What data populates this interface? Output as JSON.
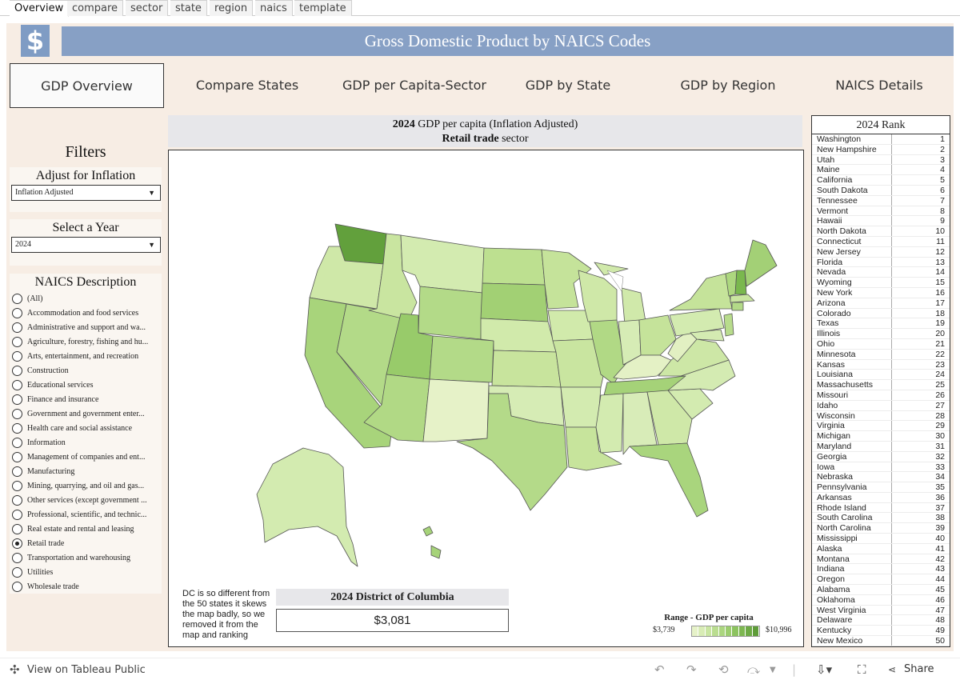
{
  "tabs": [
    "Overview",
    "compare",
    "sector",
    "state",
    "region",
    "naics",
    "template"
  ],
  "banner": {
    "logo": "$",
    "title": "Gross Domestic Product by NAICS Codes"
  },
  "nav": [
    "GDP Overview",
    "Compare States",
    "GDP per Capita-Sector",
    "GDP by State",
    "GDP by Region",
    "NAICS Details"
  ],
  "filters": {
    "title": "Filters",
    "inflation_label": "Adjust for Inflation",
    "inflation_value": "Inflation Adjusted",
    "year_label": "Select a Year",
    "year_value": "2024",
    "naics_label": "NAICS Description",
    "naics_options": [
      "(All)",
      "Accommodation and food services",
      "Administrative and support and wa...",
      "Agriculture, forestry, fishing and hu...",
      "Arts, entertainment, and recreation",
      "Construction",
      "Educational services",
      "Finance and insurance",
      "Government and government enter...",
      "Health care and social assistance",
      "Information",
      "Management of companies and ent...",
      "Manufacturing",
      "Mining, quarrying, and oil and gas...",
      "Other services (except government ...",
      "Professional, scientific, and technic...",
      "Real estate and rental and leasing",
      "Retail trade",
      "Transportation and warehousing",
      "Utilities",
      "Wholesale trade"
    ],
    "naics_selected": "Retail trade"
  },
  "map": {
    "title_year": "2024",
    "title_rest": "GDP per capita (Inflation Adjusted)",
    "title_sector": "Retail trade",
    "title_sector_suffix": "sector",
    "dc_note": "DC is so different from the 50 states it skews the map badly, so we removed it from the map and ranking",
    "dc_title": "2024 District of Columbia",
    "dc_value": "$3,081",
    "legend_title": "Range - GDP per capita",
    "legend_min": "$3,739",
    "legend_max": "$10,996",
    "legend_colors": [
      "#e6f2c8",
      "#d8ecb5",
      "#c9e5a2",
      "#badd90",
      "#abd67f",
      "#9ccd6f",
      "#8cc35f",
      "#7db751",
      "#6daa45",
      "#5e9c39"
    ]
  },
  "rank": {
    "title": "2024 Rank",
    "rows": [
      [
        "Washington",
        "1"
      ],
      [
        "New Hampshire",
        "2"
      ],
      [
        "Utah",
        "3"
      ],
      [
        "Maine",
        "4"
      ],
      [
        "California",
        "5"
      ],
      [
        "South Dakota",
        "6"
      ],
      [
        "Tennessee",
        "7"
      ],
      [
        "Vermont",
        "8"
      ],
      [
        "Hawaii",
        "9"
      ],
      [
        "North Dakota",
        "10"
      ],
      [
        "Connecticut",
        "11"
      ],
      [
        "New Jersey",
        "12"
      ],
      [
        "Florida",
        "13"
      ],
      [
        "Nevada",
        "14"
      ],
      [
        "Wyoming",
        "15"
      ],
      [
        "New York",
        "16"
      ],
      [
        "Arizona",
        "17"
      ],
      [
        "Colorado",
        "18"
      ],
      [
        "Texas",
        "19"
      ],
      [
        "Illinois",
        "20"
      ],
      [
        "Ohio",
        "21"
      ],
      [
        "Minnesota",
        "22"
      ],
      [
        "Kansas",
        "23"
      ],
      [
        "Louisiana",
        "24"
      ],
      [
        "Massachusetts",
        "25"
      ],
      [
        "Missouri",
        "26"
      ],
      [
        "Idaho",
        "27"
      ],
      [
        "Wisconsin",
        "28"
      ],
      [
        "Virginia",
        "29"
      ],
      [
        "Michigan",
        "30"
      ],
      [
        "Maryland",
        "31"
      ],
      [
        "Georgia",
        "32"
      ],
      [
        "Iowa",
        "33"
      ],
      [
        "Nebraska",
        "34"
      ],
      [
        "Pennsylvania",
        "35"
      ],
      [
        "Arkansas",
        "36"
      ],
      [
        "Rhode Island",
        "37"
      ],
      [
        "South Carolina",
        "38"
      ],
      [
        "North Carolina",
        "39"
      ],
      [
        "Mississippi",
        "40"
      ],
      [
        "Alaska",
        "41"
      ],
      [
        "Montana",
        "42"
      ],
      [
        "Indiana",
        "43"
      ],
      [
        "Oregon",
        "44"
      ],
      [
        "Alabama",
        "45"
      ],
      [
        "Oklahoma",
        "46"
      ],
      [
        "West Virginia",
        "47"
      ],
      [
        "Delaware",
        "48"
      ],
      [
        "Kentucky",
        "49"
      ],
      [
        "New Mexico",
        "50"
      ]
    ]
  },
  "footer": {
    "view_label": "View on Tableau Public",
    "share_label": "Share"
  }
}
